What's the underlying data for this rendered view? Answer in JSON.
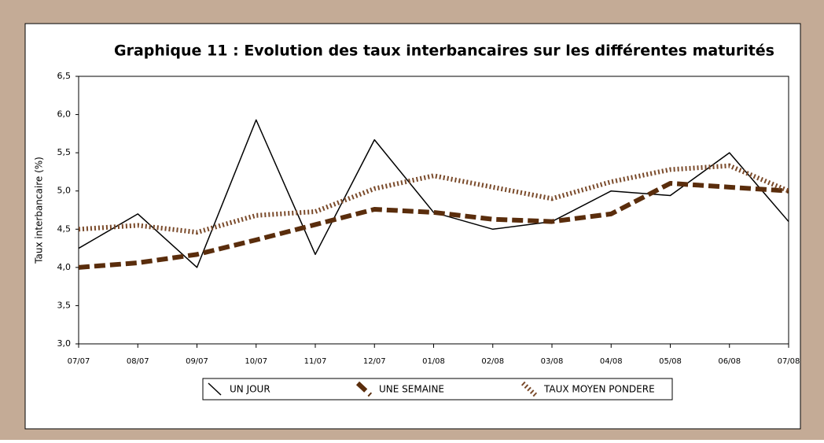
{
  "chart_data": {
    "type": "line",
    "title": "Graphique 11 : Evolution des taux interbancaires sur les différentes maturités",
    "ylabel": "Taux interbancaire (%)",
    "categories": [
      "07/07",
      "08/07",
      "09/07",
      "10/07",
      "11/07",
      "12/07",
      "01/08",
      "02/08",
      "03/08",
      "04/08",
      "05/08",
      "06/08",
      "07/08"
    ],
    "series": [
      {
        "name": "UN JOUR",
        "color": "#000000",
        "values": [
          4.25,
          4.7,
          4.0,
          5.93,
          4.17,
          5.67,
          4.72,
          4.5,
          4.6,
          5.0,
          4.94,
          5.5,
          4.6
        ]
      },
      {
        "name": "UNE SEMAINE",
        "color": "#5a2d0c",
        "values": [
          4.0,
          4.06,
          4.17,
          4.36,
          4.56,
          4.76,
          4.72,
          4.63,
          4.6,
          4.7,
          5.1,
          5.05,
          5.0
        ]
      },
      {
        "name": "TAUX MOYEN PONDERE",
        "color": "#7a4a2a",
        "values": [
          4.5,
          4.55,
          4.46,
          4.68,
          4.73,
          5.03,
          5.2,
          5.05,
          4.9,
          5.12,
          5.28,
          5.33,
          5.0
        ]
      }
    ],
    "ylim": [
      3.0,
      6.5
    ],
    "yticks": [
      {
        "value": 3.0,
        "label": "3,0"
      },
      {
        "value": 3.5,
        "label": "3,5"
      },
      {
        "value": 4.0,
        "label": "4,0"
      },
      {
        "value": 4.5,
        "label": "4,5"
      },
      {
        "value": 5.0,
        "label": "5,0"
      },
      {
        "value": 5.5,
        "label": "5,5"
      },
      {
        "value": 6.0,
        "label": "6,0"
      },
      {
        "value": 6.5,
        "label": "6,5"
      }
    ],
    "legend": "bottom"
  }
}
